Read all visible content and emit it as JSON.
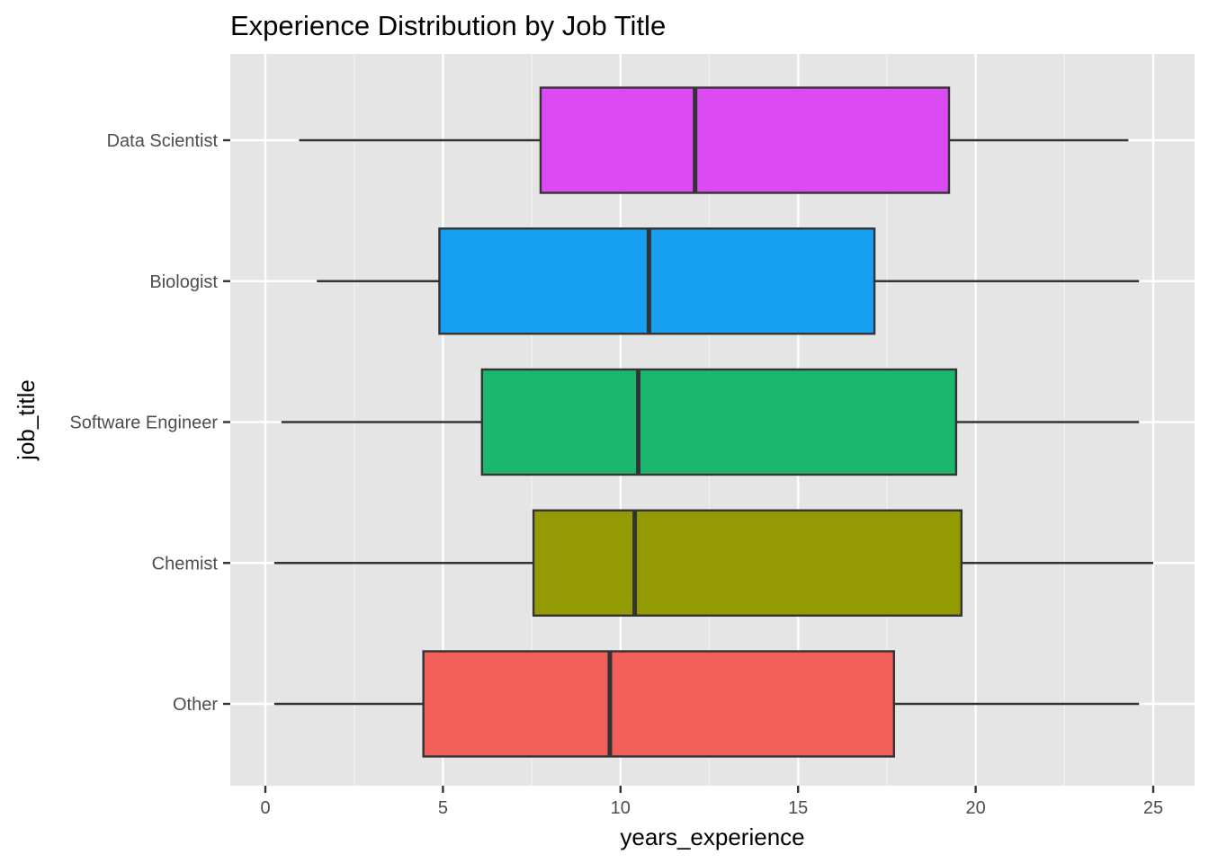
{
  "chart_data": {
    "type": "boxplot",
    "title": "Experience Distribution by Job Title",
    "xlabel": "years_experience",
    "ylabel": "job_title",
    "xlim": [
      -1,
      26
    ],
    "x_ticks": [
      0,
      5,
      10,
      15,
      20,
      25
    ],
    "orientation": "horizontal",
    "grid": true,
    "legend": "none",
    "categories": [
      "Data Scientist",
      "Biologist",
      "Software Engineer",
      "Chemist",
      "Other"
    ],
    "series": [
      {
        "category": "Data Scientist",
        "min": 0.95,
        "q1": 7.75,
        "median": 12.1,
        "q3": 19.25,
        "max": 24.3,
        "color": "#DB4AF2"
      },
      {
        "category": "Biologist",
        "min": 1.45,
        "q1": 4.9,
        "median": 10.8,
        "q3": 17.15,
        "max": 24.6,
        "color": "#179FF2"
      },
      {
        "category": "Software Engineer",
        "min": 0.45,
        "q1": 6.1,
        "median": 10.5,
        "q3": 19.45,
        "max": 24.6,
        "color": "#1BB76E"
      },
      {
        "category": "Chemist",
        "min": 0.25,
        "q1": 7.55,
        "median": 10.4,
        "q3": 19.6,
        "max": 25.0,
        "color": "#939A03"
      },
      {
        "category": "Other",
        "min": 0.25,
        "q1": 4.45,
        "median": 9.7,
        "q3": 17.7,
        "max": 24.6,
        "color": "#F2605C"
      }
    ]
  }
}
